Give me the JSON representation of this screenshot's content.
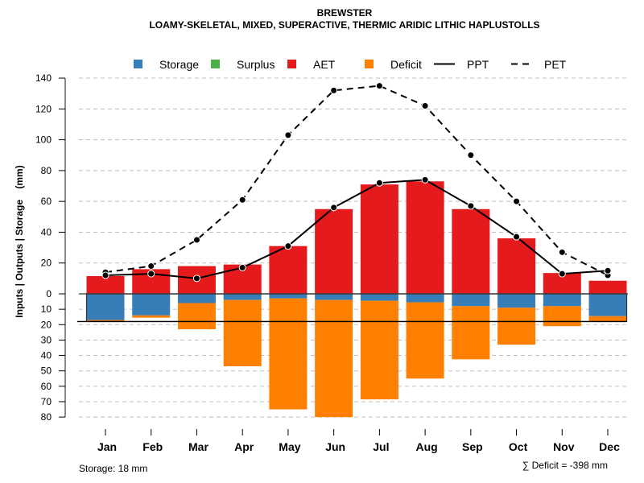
{
  "chart_data": {
    "type": "bar",
    "title": "BREWSTER",
    "subtitle": "LOAMY-SKELETAL, MIXED, SUPERACTIVE, THERMIC ARIDIC LITHIC HAPLUSTOLLS",
    "xlabel": "",
    "ylabel": "Inputs | Outputs | Storage    (mm)",
    "categories": [
      "Jan",
      "Feb",
      "Mar",
      "Apr",
      "May",
      "Jun",
      "Jul",
      "Aug",
      "Sep",
      "Oct",
      "Nov",
      "Dec"
    ],
    "ylim_positive": [
      0,
      140
    ],
    "ylim_negative": [
      0,
      80
    ],
    "yticks_positive": [
      0,
      20,
      40,
      60,
      80,
      100,
      120,
      140
    ],
    "yticks_negative": [
      10,
      20,
      30,
      40,
      50,
      60,
      70,
      80
    ],
    "grid": true,
    "legend_position": "top",
    "legend": [
      {
        "label": "Storage",
        "kind": "square",
        "color": "#377EB8"
      },
      {
        "label": "Surplus",
        "kind": "square",
        "color": "#4DAF4A"
      },
      {
        "label": "AET",
        "kind": "square",
        "color": "#E41A1C"
      },
      {
        "label": "Deficit",
        "kind": "square",
        "color": "#FF7F00"
      },
      {
        "label": "PPT",
        "kind": "solid-line",
        "color": "#000000"
      },
      {
        "label": "PET",
        "kind": "dashed-line",
        "color": "#000000"
      }
    ],
    "series": [
      {
        "name": "AET",
        "color": "#E41A1C",
        "direction": "up",
        "values": [
          11.5,
          16,
          18,
          19,
          31,
          55,
          71,
          73,
          55,
          36,
          13.5,
          8.5
        ]
      },
      {
        "name": "Surplus",
        "color": "#4DAF4A",
        "direction": "up",
        "values": [
          0,
          0,
          0,
          0,
          0,
          0,
          0,
          0,
          0,
          0,
          0,
          0
        ]
      },
      {
        "name": "Storage",
        "color": "#377EB8",
        "direction": "down",
        "values": [
          17,
          14,
          6,
          4,
          3,
          4,
          4.5,
          5.5,
          8,
          9,
          8,
          14.5
        ]
      },
      {
        "name": "Deficit",
        "color": "#FF7F00",
        "direction": "down",
        "values": [
          1,
          1.5,
          17,
          43,
          72,
          76,
          64,
          49.5,
          34.5,
          24,
          13,
          3.5
        ]
      },
      {
        "name": "PPT",
        "type": "line",
        "style": "solid",
        "color": "#000000",
        "values": [
          12,
          13,
          10,
          17,
          31,
          56,
          72,
          74,
          57,
          37,
          13,
          15
        ]
      },
      {
        "name": "PET",
        "type": "line",
        "style": "dashed",
        "color": "#000000",
        "values": [
          14,
          18,
          35,
          61,
          103,
          132,
          135,
          122,
          90,
          60,
          27,
          12
        ]
      }
    ],
    "storage_capacity_mm": 18,
    "annotations": {
      "storage_note": "Storage: 18 mm",
      "deficit_note": "∑ Deficit = -398 mm"
    }
  }
}
